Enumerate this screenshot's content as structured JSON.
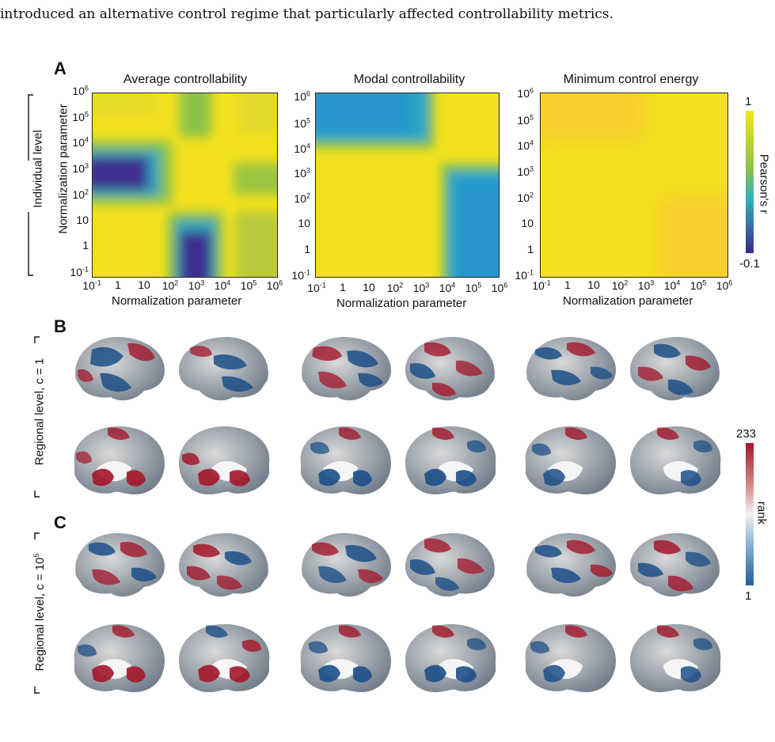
{
  "intro_text": "introduced an alternative control regime that particularly affected controllability metrics.",
  "panels": {
    "a": "A",
    "b": "B",
    "c": "C"
  },
  "titles": [
    "Average controllability",
    "Modal controllability",
    "Minimum control energy"
  ],
  "ylabel": "Normalization parameter",
  "xlabel": "Normalization parameter",
  "ticks": [
    "10-1",
    "1",
    "10",
    "102",
    "103",
    "104",
    "105",
    "106"
  ],
  "row_labels": {
    "individual": "Individual level",
    "regional_c1": "Regional level, c = 1",
    "regional_c105": "Regional level, c = 105"
  },
  "colorbar_pearson": {
    "label": "Pearson's r",
    "max": "1",
    "min": "-0.1"
  },
  "colorbar_rank": {
    "label": "rank",
    "max": "233",
    "min": "1"
  },
  "chart_data": [
    {
      "type": "heatmap",
      "title": "Average controllability",
      "xlabel": "Normalization parameter",
      "ylabel": "Normalization parameter",
      "x_ticks": [
        "10^-1",
        "1",
        "10",
        "10^2",
        "10^3",
        "10^4",
        "10^5",
        "10^6"
      ],
      "y_ticks": [
        "10^-1",
        "1",
        "10",
        "10^2",
        "10^3",
        "10^4",
        "10^5",
        "10^6"
      ],
      "scale": "log",
      "color_range": [
        -0.1,
        1
      ],
      "description_regions": [
        {
          "x_range": [
            0.1,
            100
          ],
          "y_range": [
            300,
            3000
          ],
          "r": -0.05
        },
        {
          "x_range": [
            300,
            3000
          ],
          "y_range": [
            0.1,
            30
          ],
          "r": -0.05
        },
        {
          "x_range": [
            300,
            3000
          ],
          "y_range": [
            3000,
            1000000
          ],
          "r": 0.55
        },
        {
          "x_range": [
            30000,
            1000000
          ],
          "y_range": [
            300,
            3000
          ],
          "r": 0.55
        },
        {
          "x_range": [
            30000,
            1000000
          ],
          "y_range": [
            0.1,
            30
          ],
          "r": 0.7
        }
      ]
    },
    {
      "type": "heatmap",
      "title": "Modal controllability",
      "xlabel": "Normalization parameter",
      "x_ticks": [
        "10^-1",
        "1",
        "10",
        "10^2",
        "10^3",
        "10^4",
        "10^5",
        "10^6"
      ],
      "y_ticks": [
        "10^-1",
        "1",
        "10",
        "10^2",
        "10^3",
        "10^4",
        "10^5",
        "10^6"
      ],
      "scale": "log",
      "color_range": [
        -0.1,
        1
      ],
      "description_regions": [
        {
          "x_range": [
            0.1,
            3000
          ],
          "y_range": [
            10000,
            1000000
          ],
          "r": 0.3
        },
        {
          "x_range": [
            10000,
            1000000
          ],
          "y_range": [
            0.1,
            1000
          ],
          "r": 0.3
        }
      ]
    },
    {
      "type": "heatmap",
      "title": "Minimum control energy",
      "xlabel": "Normalization parameter",
      "x_ticks": [
        "10^-1",
        "1",
        "10",
        "10^2",
        "10^3",
        "10^4",
        "10^5",
        "10^6"
      ],
      "y_ticks": [
        "10^-1",
        "1",
        "10",
        "10^2",
        "10^3",
        "10^4",
        "10^5",
        "10^6"
      ],
      "scale": "log",
      "color_range": [
        -0.1,
        1
      ],
      "description_regions": [
        {
          "x_range": [
            0.1,
            1000
          ],
          "y_range": [
            10000,
            1000000
          ],
          "r": 0.93
        },
        {
          "x_range": [
            10000,
            1000000
          ],
          "y_range": [
            0.1,
            1000
          ],
          "r": 0.93
        }
      ]
    }
  ],
  "colors": {
    "viridis_low": "#3b2a8c",
    "viridis_mid": "#2bb3c0",
    "viridis_green": "#8fc245",
    "viridis_high": "#f5e51b",
    "rank_low": "#1f5e9c",
    "rank_mid": "#f2f2f2",
    "rank_high": "#a3162a"
  }
}
